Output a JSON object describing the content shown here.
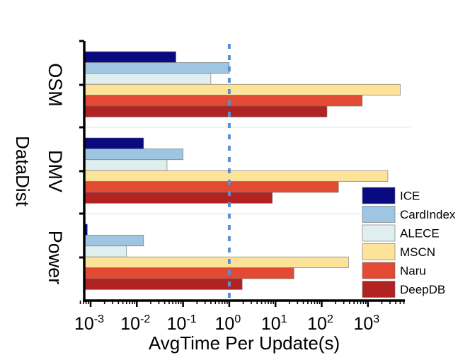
{
  "chart_data": {
    "type": "bar",
    "orientation": "horizontal",
    "xlabel": "AvgTime Per Update(s)",
    "ylabel": "DataDist",
    "xscale": "log",
    "xlim": [
      0.0006,
      6000
    ],
    "xticks": [
      {
        "base": "10",
        "exp": "-3"
      },
      {
        "base": "10",
        "exp": "-2"
      },
      {
        "base": "10",
        "exp": "-1"
      },
      {
        "base": "10",
        "exp": "0"
      },
      {
        "base": "10",
        "exp": "1"
      },
      {
        "base": "10",
        "exp": "2"
      },
      {
        "base": "10",
        "exp": "3"
      }
    ],
    "reference_line": {
      "x": 1,
      "style": "dotted",
      "color": "#5b8fd4"
    },
    "categories": [
      "OSM",
      "DMV",
      "Power"
    ],
    "series": [
      {
        "name": "ICE",
        "color": "#0a0a80",
        "values": [
          0.07,
          0.014,
          0.00085
        ]
      },
      {
        "name": "CardIndex",
        "color": "#9ec6e2",
        "values": [
          1.0,
          0.1,
          0.014
        ]
      },
      {
        "name": "ALECE",
        "color": "#dfefef",
        "values": [
          0.4,
          0.045,
          0.006
        ]
      },
      {
        "name": "MSCN",
        "color": "#fde29a",
        "values": [
          5000,
          2700,
          380
        ]
      },
      {
        "name": "Naru",
        "color": "#e34a33",
        "values": [
          750,
          230,
          25
        ]
      },
      {
        "name": "DeepDB",
        "color": "#b22222",
        "values": [
          130,
          8.5,
          1.9
        ]
      }
    ],
    "legend_position": "bottom-right",
    "grid": false
  }
}
